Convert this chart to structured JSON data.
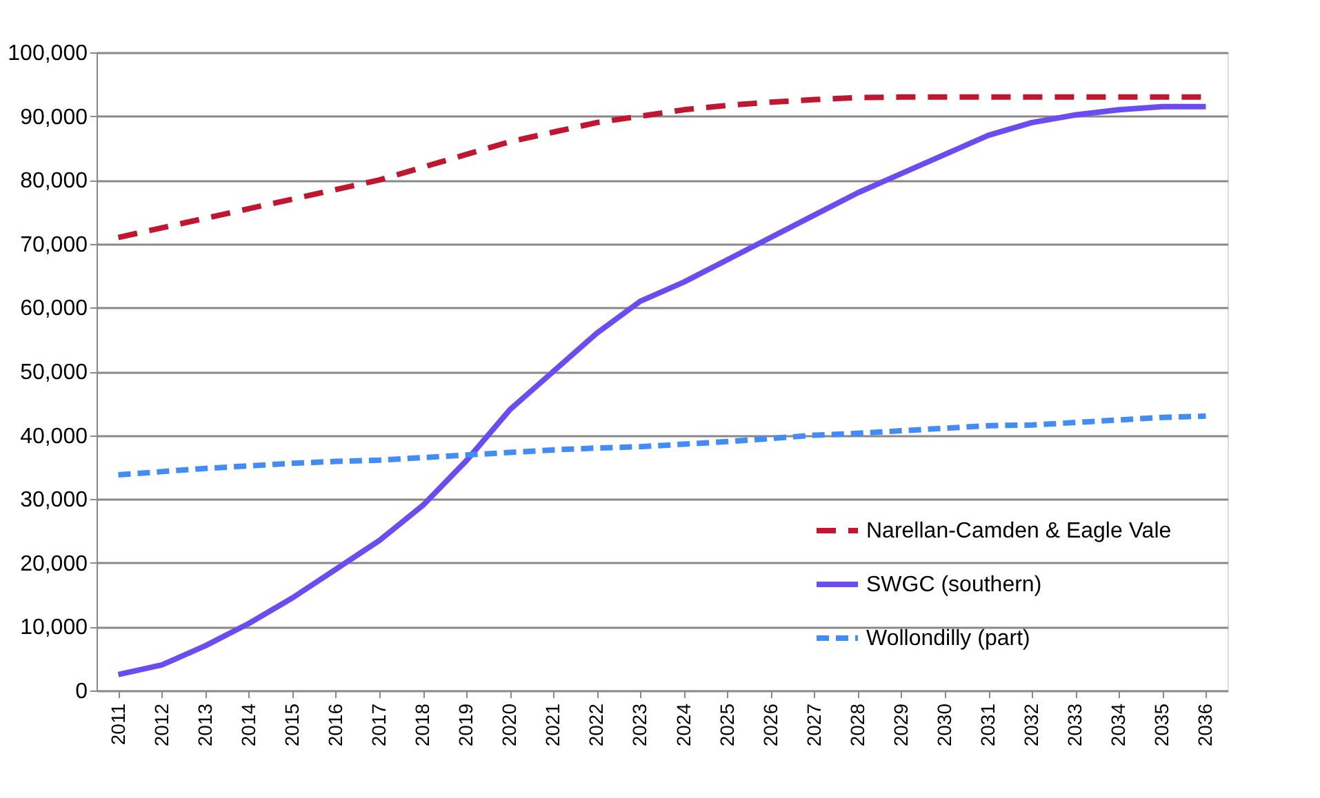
{
  "chart_data": {
    "type": "line",
    "categories": [
      "2011",
      "2012",
      "2013",
      "2014",
      "2015",
      "2016",
      "2017",
      "2018",
      "2019",
      "2020",
      "2021",
      "2022",
      "2023",
      "2024",
      "2025",
      "2026",
      "2027",
      "2028",
      "2029",
      "2030",
      "2031",
      "2032",
      "2033",
      "2034",
      "2035",
      "2036"
    ],
    "series": [
      {
        "name": "Narellan-Camden & Eagle Vale",
        "color": "#c0162f",
        "line_style": "dashed",
        "values": [
          71000,
          72500,
          74000,
          75500,
          77000,
          78500,
          80000,
          82000,
          84000,
          86000,
          87500,
          89000,
          90000,
          91000,
          91700,
          92200,
          92600,
          92900,
          93000,
          93000,
          93000,
          93000,
          93000,
          93000,
          93000,
          93000
        ]
      },
      {
        "name": "SWGC (southern)",
        "color": "#6b4cf0",
        "line_style": "solid",
        "values": [
          2500,
          4000,
          7000,
          10500,
          14500,
          19000,
          23500,
          29000,
          36000,
          44000,
          50000,
          56000,
          61000,
          64000,
          67500,
          71000,
          74500,
          78000,
          81000,
          84000,
          87000,
          89000,
          90200,
          91000,
          91500,
          91500
        ]
      },
      {
        "name": "Wollondilly (part)",
        "color": "#448cf5",
        "line_style": "dotted",
        "values": [
          33800,
          34300,
          34800,
          35200,
          35600,
          35900,
          36100,
          36500,
          36900,
          37300,
          37700,
          38000,
          38200,
          38600,
          39000,
          39500,
          40000,
          40300,
          40700,
          41100,
          41500,
          41600,
          42000,
          42400,
          42800,
          43000
        ]
      }
    ],
    "ylim": [
      0,
      100000
    ],
    "yticks": [
      0,
      {
        "value": 10000,
        "label": "10,000"
      },
      {
        "value": 20000,
        "label": "20,000"
      },
      {
        "value": 30000,
        "label": "30,000"
      },
      {
        "value": 40000,
        "label": "40,000"
      },
      {
        "value": 50000,
        "label": "50,000"
      },
      {
        "value": 60000,
        "label": "60,000"
      },
      {
        "value": 70000,
        "label": "70,000"
      },
      {
        "value": 80000,
        "label": "80,000"
      },
      {
        "value": 90000,
        "label": "90,000"
      },
      {
        "value": 100000,
        "label": "100,000"
      }
    ],
    "grid": "y",
    "legend": "bottom right",
    "marker": "none"
  }
}
